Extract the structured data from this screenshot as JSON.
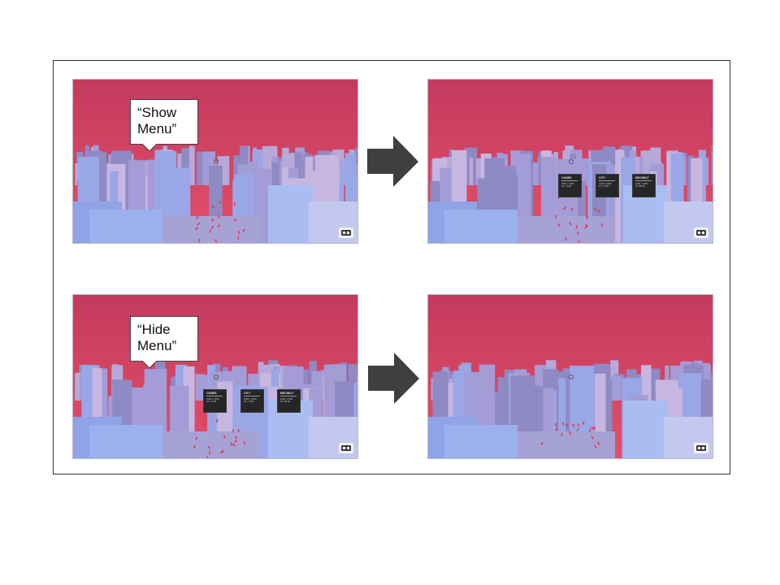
{
  "steps": [
    {
      "bubble_text": "“Show Menu”",
      "before_menu_visible": false,
      "after_menu_visible": true
    },
    {
      "bubble_text": "“Hide Menu”",
      "before_menu_visible": true,
      "after_menu_visible": false
    }
  ],
  "menu": {
    "panels": [
      {
        "title": "CUBES",
        "line1": "1000 x 1500",
        "line2": "PC / 2 KB"
      },
      {
        "title": "CITY",
        "line1": "1000 x 1500",
        "line2": "PC / 2 KB"
      },
      {
        "title": "BECHELT",
        "line1": "1000 x 1500",
        "line2": "PC 2B 30"
      }
    ]
  },
  "icons": {
    "vr_button": "cardboard-vr-icon",
    "arrow": "right-arrow-icon",
    "reticle": "gaze-reticle-icon"
  },
  "colors": {
    "sky_top": "#c43a5e",
    "sky_bottom": "#e34f68",
    "city": "#9d9ad8",
    "arrow": "#3f3f3f"
  }
}
